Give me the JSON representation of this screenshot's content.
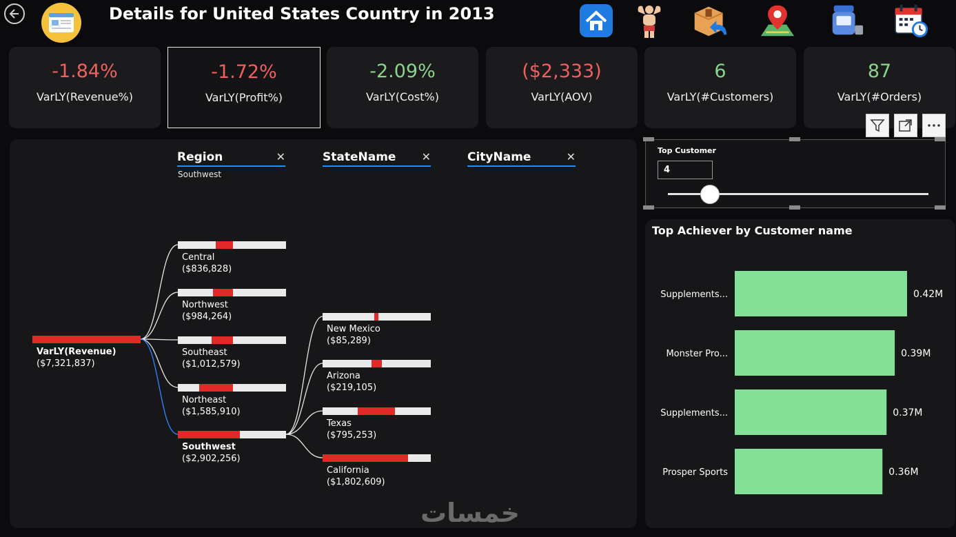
{
  "header": {
    "title": "Details for United States Country in 2013",
    "nav_icons": [
      "home-icon",
      "bodybuilder-icon",
      "box-return-icon",
      "map-pin-icon",
      "scale-icon",
      "calendar-clock-icon"
    ]
  },
  "kpis": [
    {
      "value": "-1.84%",
      "label": "VarLY(Revenue%)",
      "status": "negative"
    },
    {
      "value": "-1.72%",
      "label": "VarLY(Profit%)",
      "status": "negative"
    },
    {
      "value": "-2.09%",
      "label": "VarLY(Cost%)",
      "status": "positive"
    },
    {
      "value": "($2,333)",
      "label": "VarLY(AOV)",
      "status": "negative"
    },
    {
      "value": "6",
      "label": "VarLY(#Customers)",
      "status": "positive"
    },
    {
      "value": "87",
      "label": "VarLY(#Orders)",
      "status": "positive"
    }
  ],
  "decomp_tree": {
    "columns": [
      {
        "label": "Region",
        "selected": "Southwest"
      },
      {
        "label": "StateName",
        "selected": ""
      },
      {
        "label": "CityName",
        "selected": ""
      }
    ],
    "root": {
      "name": "VarLY(Revenue)",
      "value": "($7,321,837)"
    },
    "regions": [
      {
        "name": "Central",
        "value": "($836,828)",
        "share": 0.11
      },
      {
        "name": "Northwest",
        "value": "($984,264)",
        "share": 0.13
      },
      {
        "name": "Southeast",
        "value": "($1,012,579)",
        "share": 0.14
      },
      {
        "name": "Northeast",
        "value": "($1,585,910)",
        "share": 0.22
      },
      {
        "name": "Southwest",
        "value": "($2,902,256)",
        "share": 0.4
      }
    ],
    "states": [
      {
        "name": "New Mexico",
        "value": "($85,289)",
        "share": 0.03
      },
      {
        "name": "Arizona",
        "value": "($219,105)",
        "share": 0.075
      },
      {
        "name": "Texas",
        "value": "($795,253)",
        "share": 0.27
      },
      {
        "name": "California",
        "value": "($1,802,609)",
        "share": 0.62
      }
    ]
  },
  "slicer": {
    "title": "Top Customer",
    "value": "4"
  },
  "top_chart": {
    "title": "Top Achiever by Customer name",
    "bar_color": "#84e096"
  },
  "chart_data": {
    "type": "bar",
    "orientation": "horizontal",
    "title": "Top Achiever by Customer name",
    "categories": [
      "Supplements...",
      "Monster Pro...",
      "Supplements...",
      "Prosper Sports"
    ],
    "values": [
      0.42,
      0.39,
      0.37,
      0.36
    ],
    "value_labels": [
      "0.42M",
      "0.39M",
      "0.37M",
      "0.36M"
    ],
    "xlim": [
      0,
      0.45
    ]
  },
  "watermark": "خمسات"
}
